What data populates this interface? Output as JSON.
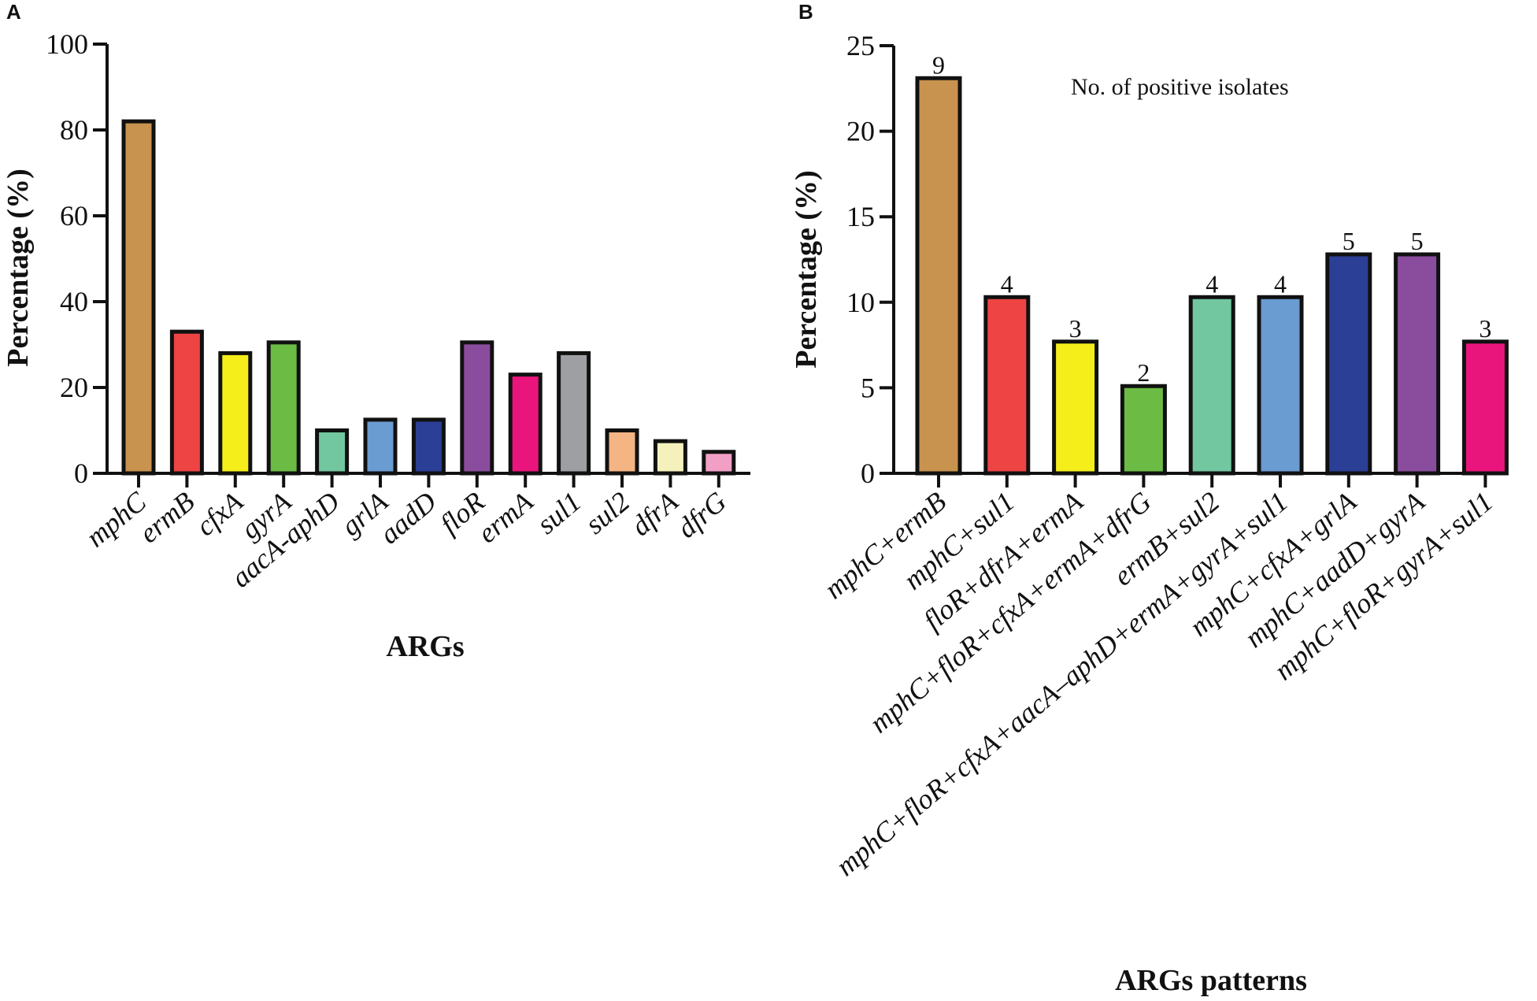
{
  "chart_data": [
    {
      "panel_label": "A",
      "type": "bar",
      "title": "",
      "xlabel": "ARGs",
      "ylabel": "Percentage (%)",
      "ylim": [
        0,
        100
      ],
      "yticks": [
        "0",
        "20",
        "40",
        "60",
        "80",
        "100"
      ],
      "grid": false,
      "categories": [
        "mphC",
        "ermB",
        "cfxA",
        "gyrA",
        "aacA-aphD",
        "grlA",
        "aadD",
        "floR",
        "ermA",
        "sul1",
        "sul2",
        "dfrA",
        "dfrG"
      ],
      "values": [
        82,
        33,
        28,
        30.5,
        10,
        12.5,
        12.5,
        30.5,
        23,
        28,
        10,
        7.5,
        5
      ],
      "colors": [
        "#c8934e",
        "#ee4444",
        "#f5ee1b",
        "#6bbb45",
        "#72c6a0",
        "#6a9bd1",
        "#2b3f96",
        "#8a4d9e",
        "#ea157c",
        "#9d9fa2",
        "#f4b483",
        "#f5f1bd",
        "#f29fc5"
      ]
    },
    {
      "panel_label": "B",
      "type": "bar",
      "title": "",
      "xlabel": "ARGs patterns",
      "ylabel": "Percentage (%)",
      "ylim": [
        0,
        25
      ],
      "yticks": [
        "0",
        "5",
        "10",
        "15",
        "20",
        "25"
      ],
      "grid": false,
      "annotation": "No. of positive isolates",
      "categories": [
        "mphC+ermB",
        "mphC+sul1",
        "floR+dfrA+ermA",
        "mphC+floR+cfxA+ermA+dfrG",
        "ermB+sul2",
        "mphC+floR+cfxA+aacA–aphD+ermA+gyrA+sul1",
        "mphC+cfxA+grlA",
        "mphC+aadD+gyrA",
        "mphC+floR+gyrA+sul1"
      ],
      "values": [
        23.1,
        10.3,
        7.7,
        5.1,
        10.3,
        10.3,
        12.8,
        12.8,
        7.7
      ],
      "data_labels": [
        "9",
        "4",
        "3",
        "2",
        "4",
        "4",
        "5",
        "5",
        "3"
      ],
      "colors": [
        "#c8934e",
        "#ee4444",
        "#f5ee1b",
        "#6bbb45",
        "#72c6a0",
        "#6a9bd1",
        "#2b3f96",
        "#8a4d9e",
        "#ea157c"
      ]
    }
  ]
}
